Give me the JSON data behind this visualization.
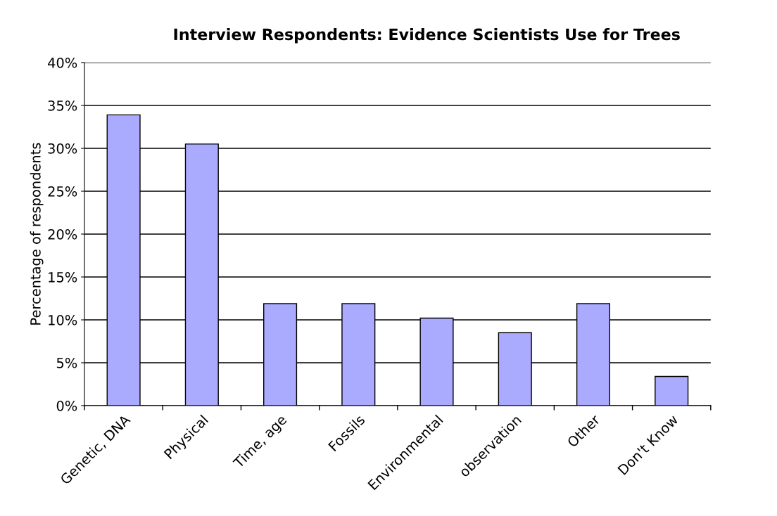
{
  "chart_data": {
    "type": "bar",
    "title": "Interview Respondents: Evidence Scientists Use for Trees",
    "ylabel": "Percentage of respondents",
    "categories": [
      "Genetic, DNA",
      "Physical",
      "Time, age",
      "Fossils",
      "Environmental",
      "observation",
      "Other",
      "Don't Know"
    ],
    "values": [
      33.9,
      30.5,
      11.9,
      11.9,
      10.2,
      8.5,
      11.9,
      3.4
    ],
    "color": "#aaaaff",
    "ylim": [
      0,
      40
    ],
    "yticks": [
      {
        "value": 0,
        "label": "0%"
      },
      {
        "value": 5,
        "label": "5%"
      },
      {
        "value": 10,
        "label": "10%"
      },
      {
        "value": 15,
        "label": "15%"
      },
      {
        "value": 20,
        "label": "20%"
      },
      {
        "value": 25,
        "label": "25%"
      },
      {
        "value": 30,
        "label": "30%"
      },
      {
        "value": 35,
        "label": "35%"
      },
      {
        "value": 40,
        "label": "40%"
      }
    ],
    "grid": "y"
  }
}
